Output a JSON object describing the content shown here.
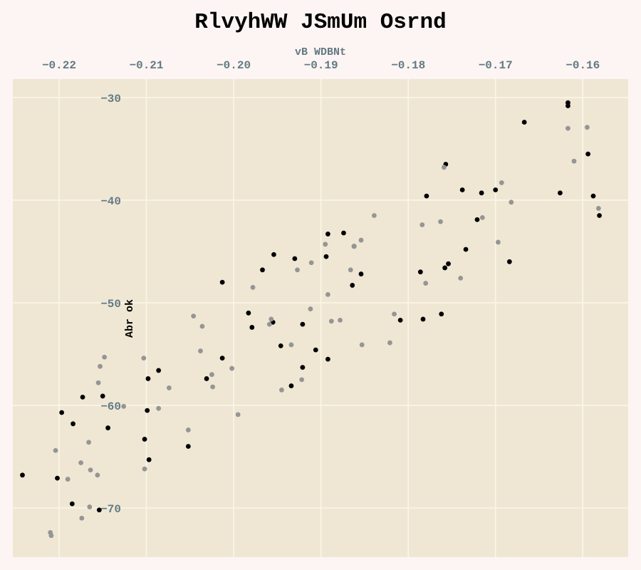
{
  "colors": {
    "page_background": "#fdf5f3",
    "plot_background": "#efe7d4",
    "grid": "#fbf6e6",
    "tick_text": "#637a84",
    "series_dark": "#000000",
    "series_light": "#959595"
  },
  "chart_data": {
    "type": "scatter",
    "title": "RlvyhWW JSmUm Osrnd",
    "xlabel": "vB WDBNt",
    "ylabel": "Abr ok",
    "x_axis_position": "top",
    "y_tick_labels_inside": true,
    "grid": true,
    "legend": "none",
    "xlim": [
      -0.2253,
      -0.1548
    ],
    "ylim": [
      -74.8,
      -28.2
    ],
    "x_ticks": [
      -0.22,
      -0.21,
      -0.2,
      -0.19,
      -0.18,
      -0.17,
      -0.16
    ],
    "x_tick_labels": [
      "−0.22",
      "−0.21",
      "−0.20",
      "−0.19",
      "−0.18",
      "−0.17",
      "−0.16"
    ],
    "y_ticks": [
      -30,
      -40,
      -50,
      -60,
      -70
    ],
    "y_tick_labels": [
      "−30",
      "−40",
      "−50",
      "−60",
      "−70"
    ],
    "series": [
      {
        "color": "#000000",
        "points": [
          [
            -0.2242,
            -66.8
          ],
          [
            -0.2202,
            -67.1
          ],
          [
            -0.2197,
            -60.7
          ],
          [
            -0.2185,
            -69.6
          ],
          [
            -0.2184,
            -61.8
          ],
          [
            -0.2173,
            -59.2
          ],
          [
            -0.2154,
            -70.2
          ],
          [
            -0.215,
            -59.1
          ],
          [
            -0.2144,
            -62.2
          ],
          [
            -0.2102,
            -63.3
          ],
          [
            -0.2099,
            -60.5
          ],
          [
            -0.2098,
            -57.4
          ],
          [
            -0.2097,
            -65.3
          ],
          [
            -0.2086,
            -56.6
          ],
          [
            -0.2052,
            -64.0
          ],
          [
            -0.2031,
            -57.4
          ],
          [
            -0.2013,
            -48.0
          ],
          [
            -0.2013,
            -55.4
          ],
          [
            -0.1983,
            -51.0
          ],
          [
            -0.1979,
            -52.4
          ],
          [
            -0.1967,
            -46.8
          ],
          [
            -0.1955,
            -51.9
          ],
          [
            -0.1954,
            -45.3
          ],
          [
            -0.1946,
            -54.2
          ],
          [
            -0.1934,
            -58.1
          ],
          [
            -0.193,
            -45.7
          ],
          [
            -0.1921,
            -52.1
          ],
          [
            -0.1921,
            -56.3
          ],
          [
            -0.1906,
            -54.6
          ],
          [
            -0.1894,
            -45.5
          ],
          [
            -0.1892,
            -43.3
          ],
          [
            -0.1892,
            -55.5
          ],
          [
            -0.1874,
            -43.2
          ],
          [
            -0.1864,
            -48.3
          ],
          [
            -0.1862,
            -44.5
          ],
          [
            -0.1854,
            -47.2
          ],
          [
            -0.1809,
            -51.7
          ],
          [
            -0.1786,
            -47.0
          ],
          [
            -0.1783,
            -51.6
          ],
          [
            -0.1779,
            -39.6
          ],
          [
            -0.1762,
            -51.1
          ],
          [
            -0.1758,
            -46.6
          ],
          [
            -0.1757,
            -36.5
          ],
          [
            -0.1754,
            -46.2
          ],
          [
            -0.1738,
            -39.0
          ],
          [
            -0.1734,
            -44.8
          ],
          [
            -0.1721,
            -41.9
          ],
          [
            -0.1716,
            -39.3
          ],
          [
            -0.17,
            -39.0
          ],
          [
            -0.1684,
            -46.0
          ],
          [
            -0.1667,
            -32.4
          ],
          [
            -0.1626,
            -39.3
          ],
          [
            -0.1617,
            -30.5
          ],
          [
            -0.1617,
            -30.8
          ],
          [
            -0.1594,
            -35.5
          ],
          [
            -0.1588,
            -39.6
          ],
          [
            -0.1581,
            -41.5
          ]
        ]
      },
      {
        "color": "#959595",
        "points": [
          [
            -0.221,
            -72.4
          ],
          [
            -0.2209,
            -72.7
          ],
          [
            -0.2204,
            -64.4
          ],
          [
            -0.219,
            -67.2
          ],
          [
            -0.2175,
            -65.6
          ],
          [
            -0.2174,
            -71.0
          ],
          [
            -0.2166,
            -63.6
          ],
          [
            -0.2165,
            -69.9
          ],
          [
            -0.2164,
            -66.3
          ],
          [
            -0.2156,
            -66.8
          ],
          [
            -0.2155,
            -57.8
          ],
          [
            -0.2153,
            -56.2
          ],
          [
            -0.2148,
            -55.3
          ],
          [
            -0.2126,
            -60.1
          ],
          [
            -0.2103,
            -55.4
          ],
          [
            -0.2102,
            -66.2
          ],
          [
            -0.2086,
            -60.3
          ],
          [
            -0.2074,
            -58.3
          ],
          [
            -0.2052,
            -62.4
          ],
          [
            -0.2046,
            -51.3
          ],
          [
            -0.2038,
            -54.7
          ],
          [
            -0.2036,
            -52.3
          ],
          [
            -0.2025,
            -57.0
          ],
          [
            -0.2024,
            -58.2
          ],
          [
            -0.2002,
            -56.4
          ],
          [
            -0.1995,
            -60.9
          ],
          [
            -0.1978,
            -48.5
          ],
          [
            -0.1959,
            -52.1
          ],
          [
            -0.1957,
            -51.6
          ],
          [
            -0.1945,
            -58.5
          ],
          [
            -0.1934,
            -54.1
          ],
          [
            -0.1927,
            -46.8
          ],
          [
            -0.1922,
            -57.5
          ],
          [
            -0.1912,
            -50.6
          ],
          [
            -0.1911,
            -46.1
          ],
          [
            -0.1895,
            -44.3
          ],
          [
            -0.1892,
            -49.2
          ],
          [
            -0.1888,
            -51.8
          ],
          [
            -0.1878,
            -51.7
          ],
          [
            -0.1866,
            -46.8
          ],
          [
            -0.1862,
            -44.5
          ],
          [
            -0.1854,
            -43.9
          ],
          [
            -0.1853,
            -54.1
          ],
          [
            -0.1839,
            -41.5
          ],
          [
            -0.1821,
            -53.9
          ],
          [
            -0.1816,
            -51.1
          ],
          [
            -0.1784,
            -42.4
          ],
          [
            -0.178,
            -48.1
          ],
          [
            -0.1763,
            -42.1
          ],
          [
            -0.1759,
            -36.8
          ],
          [
            -0.174,
            -47.6
          ],
          [
            -0.1715,
            -41.7
          ],
          [
            -0.1697,
            -44.1
          ],
          [
            -0.1693,
            -38.3
          ],
          [
            -0.1682,
            -40.2
          ],
          [
            -0.1617,
            -33.0
          ],
          [
            -0.161,
            -36.2
          ],
          [
            -0.1595,
            -32.9
          ],
          [
            -0.1582,
            -40.8
          ]
        ]
      }
    ]
  }
}
